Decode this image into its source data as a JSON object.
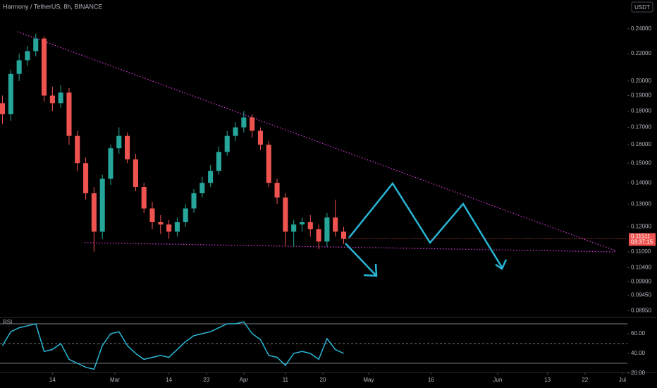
{
  "chart_data": {
    "type": "candlestick",
    "title": "Harmony / TetherUS, 8h, BINANCE",
    "currency": "USDT",
    "countdown": "03:37:15",
    "up_color": "#26a69a",
    "down_color": "#ef5350",
    "log_scale": true,
    "x": [
      33,
      35,
      37,
      39,
      41,
      43,
      45,
      47,
      49,
      51,
      53,
      55,
      57,
      59,
      61,
      63,
      65,
      67,
      69,
      71,
      73,
      75,
      77,
      79,
      81,
      83,
      85,
      87,
      89,
      91,
      93,
      95,
      97,
      99,
      101,
      103,
      105,
      107,
      109,
      111,
      113,
      115
    ],
    "open": [
      0.185,
      0.178,
      0.205,
      0.215,
      0.222,
      0.232,
      0.19,
      0.185,
      0.192,
      0.165,
      0.15,
      0.135,
      0.118,
      0.142,
      0.158,
      0.165,
      0.152,
      0.138,
      0.128,
      0.122,
      0.121,
      0.118,
      0.122,
      0.128,
      0.135,
      0.14,
      0.146,
      0.156,
      0.165,
      0.17,
      0.176,
      0.168,
      0.16,
      0.14,
      0.133,
      0.118,
      0.121,
      0.122,
      0.119,
      0.114,
      0.124,
      0.118
    ],
    "high": [
      0.19,
      0.208,
      0.22,
      0.226,
      0.236,
      0.234,
      0.196,
      0.197,
      0.195,
      0.168,
      0.153,
      0.138,
      0.144,
      0.16,
      0.17,
      0.167,
      0.155,
      0.14,
      0.131,
      0.125,
      0.123,
      0.124,
      0.13,
      0.137,
      0.143,
      0.149,
      0.159,
      0.168,
      0.173,
      0.18,
      0.178,
      0.17,
      0.162,
      0.142,
      0.135,
      0.123,
      0.124,
      0.125,
      0.121,
      0.126,
      0.132,
      0.12
    ],
    "low": [
      0.172,
      0.174,
      0.2,
      0.211,
      0.218,
      0.186,
      0.18,
      0.182,
      0.16,
      0.146,
      0.132,
      0.11,
      0.115,
      0.139,
      0.155,
      0.15,
      0.136,
      0.126,
      0.119,
      0.117,
      0.115,
      0.116,
      0.12,
      0.126,
      0.133,
      0.138,
      0.144,
      0.154,
      0.162,
      0.167,
      0.164,
      0.157,
      0.138,
      0.13,
      0.112,
      0.112,
      0.118,
      0.116,
      0.111,
      0.112,
      0.116,
      0.113
    ],
    "close": [
      0.178,
      0.205,
      0.215,
      0.222,
      0.232,
      0.19,
      0.185,
      0.192,
      0.165,
      0.15,
      0.135,
      0.118,
      0.142,
      0.158,
      0.165,
      0.152,
      0.138,
      0.128,
      0.122,
      0.121,
      0.118,
      0.122,
      0.128,
      0.135,
      0.14,
      0.146,
      0.156,
      0.165,
      0.17,
      0.176,
      0.168,
      0.16,
      0.14,
      0.133,
      0.118,
      0.121,
      0.122,
      0.119,
      0.114,
      0.124,
      0.118,
      0.11511
    ],
    "ylim": [
      0.0874,
      0.2655
    ],
    "yticks": [
      {
        "value": 0.24,
        "label": "0.24000"
      },
      {
        "value": 0.22,
        "label": "0.22000"
      },
      {
        "value": 0.2,
        "label": "0.20000"
      },
      {
        "value": 0.19,
        "label": "0.19000"
      },
      {
        "value": 0.18,
        "label": "0.18000"
      },
      {
        "value": 0.17,
        "label": "0.17000"
      },
      {
        "value": 0.16,
        "label": "0.16000"
      },
      {
        "value": 0.15,
        "label": "0.15000"
      },
      {
        "value": 0.14,
        "label": "0.14000"
      },
      {
        "value": 0.13,
        "label": "0.13000"
      },
      {
        "value": 0.12,
        "label": "0.12000"
      },
      {
        "value": 0.11,
        "label": "0.11000"
      },
      {
        "value": 0.104,
        "label": "0.10400"
      },
      {
        "value": 0.099,
        "label": "0.09900"
      },
      {
        "value": 0.0945,
        "label": "0.09450"
      },
      {
        "value": 0.0895,
        "label": "0.08950"
      }
    ],
    "xlim": [
      32.4,
      183.2
    ],
    "xticks": [
      {
        "value": 45,
        "label": "14"
      },
      {
        "value": 60,
        "label": "Mar"
      },
      {
        "value": 73,
        "label": "14"
      },
      {
        "value": 82,
        "label": "23"
      },
      {
        "value": 91,
        "label": "Apr"
      },
      {
        "value": 101,
        "label": "11"
      },
      {
        "value": 110,
        "label": "20"
      },
      {
        "value": 121,
        "label": "May"
      },
      {
        "value": 136,
        "label": "16"
      },
      {
        "value": 152,
        "label": "Jun"
      },
      {
        "value": 164,
        "label": "13"
      },
      {
        "value": 173,
        "label": "22"
      },
      {
        "value": 182,
        "label": "Jul"
      }
    ],
    "rsi": {
      "name": "RSI",
      "color": "#2bb7d6",
      "values": [
        48,
        62,
        66,
        68,
        70,
        42,
        44,
        50,
        34,
        30,
        26,
        24,
        48,
        60,
        62,
        48,
        40,
        34,
        36,
        38,
        36,
        44,
        52,
        58,
        60,
        62,
        66,
        70,
        70,
        72,
        60,
        54,
        38,
        36,
        28,
        40,
        42,
        40,
        34,
        55,
        44,
        40
      ],
      "ylim": [
        20.7,
        76.4
      ],
      "yticks": [
        {
          "value": 60,
          "label": "60.00"
        },
        {
          "value": 40,
          "label": "40.00"
        },
        {
          "value": 20,
          "label": "20.00"
        }
      ],
      "levels": [
        70,
        50,
        30
      ]
    }
  }
}
